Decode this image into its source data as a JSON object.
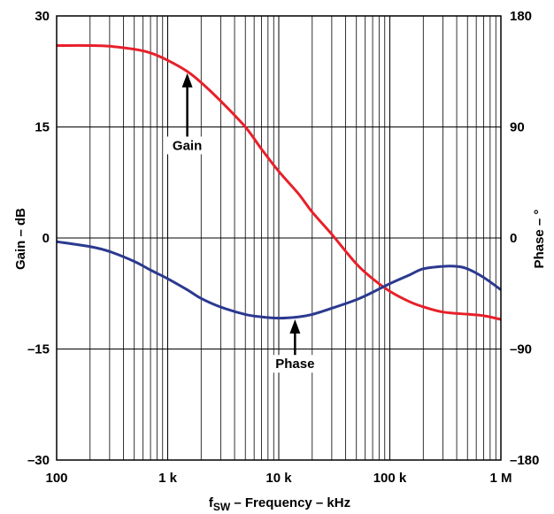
{
  "chart_data": {
    "type": "line",
    "xscale": "log",
    "xlim": [
      100,
      1000000
    ],
    "x_tick_labels": [
      "100",
      "1 k",
      "10 k",
      "100 k",
      "1 M"
    ],
    "xlabel_main": "f",
    "xlabel_sub": "SW",
    "xlabel_rest": " – Frequency – kHz",
    "ylabel_left": "Gain – dB",
    "ylim_left": [
      -30,
      30
    ],
    "y_left_tick_labels": [
      "30",
      "15",
      "0",
      "–15",
      "–30"
    ],
    "ylabel_right": "Phase – °",
    "ylim_right": [
      -180,
      180
    ],
    "y_right_tick_labels": [
      "180",
      "90",
      "0",
      "–90",
      "–180"
    ],
    "grid": true,
    "series": [
      {
        "name": "Gain",
        "axis": "left",
        "color": "#e8202a",
        "x": [
          100,
          200,
          300,
          500,
          700,
          1000,
          1500,
          2000,
          3000,
          5000,
          7000,
          10000,
          15000,
          20000,
          30000,
          50000,
          70000,
          100000,
          150000,
          200000,
          300000,
          500000,
          700000,
          1000000
        ],
        "y": [
          26,
          26,
          25.9,
          25.5,
          25,
          24,
          22.5,
          21,
          18.5,
          15,
          12,
          9,
          6,
          3.5,
          0.5,
          -3.5,
          -5.5,
          -7.2,
          -8.6,
          -9.3,
          -10,
          -10.3,
          -10.5,
          -11
        ]
      },
      {
        "name": "Phase",
        "axis": "right",
        "color": "#2b3990",
        "x": [
          100,
          200,
          300,
          500,
          700,
          1000,
          1500,
          2000,
          3000,
          5000,
          7000,
          10000,
          15000,
          20000,
          30000,
          50000,
          70000,
          100000,
          150000,
          200000,
          300000,
          400000,
          500000,
          700000,
          1000000
        ],
        "y": [
          -3,
          -7,
          -11,
          -19,
          -26,
          -33,
          -42,
          -49,
          -56,
          -62,
          -64,
          -65,
          -64,
          -62,
          -57,
          -50,
          -44,
          -37,
          -30,
          -25,
          -23,
          -23,
          -25,
          -32,
          -42
        ]
      }
    ],
    "annotations": [
      {
        "text": "Gain",
        "series": "Gain",
        "arrow_x": 1500,
        "arrow_y": 22.5,
        "label_x": 1500,
        "label_y": 12.5
      },
      {
        "text": "Phase",
        "series": "Phase",
        "arrow_x": 14000,
        "arrow_y": -64.5,
        "label_x": 14000,
        "label_y": -102
      }
    ]
  }
}
